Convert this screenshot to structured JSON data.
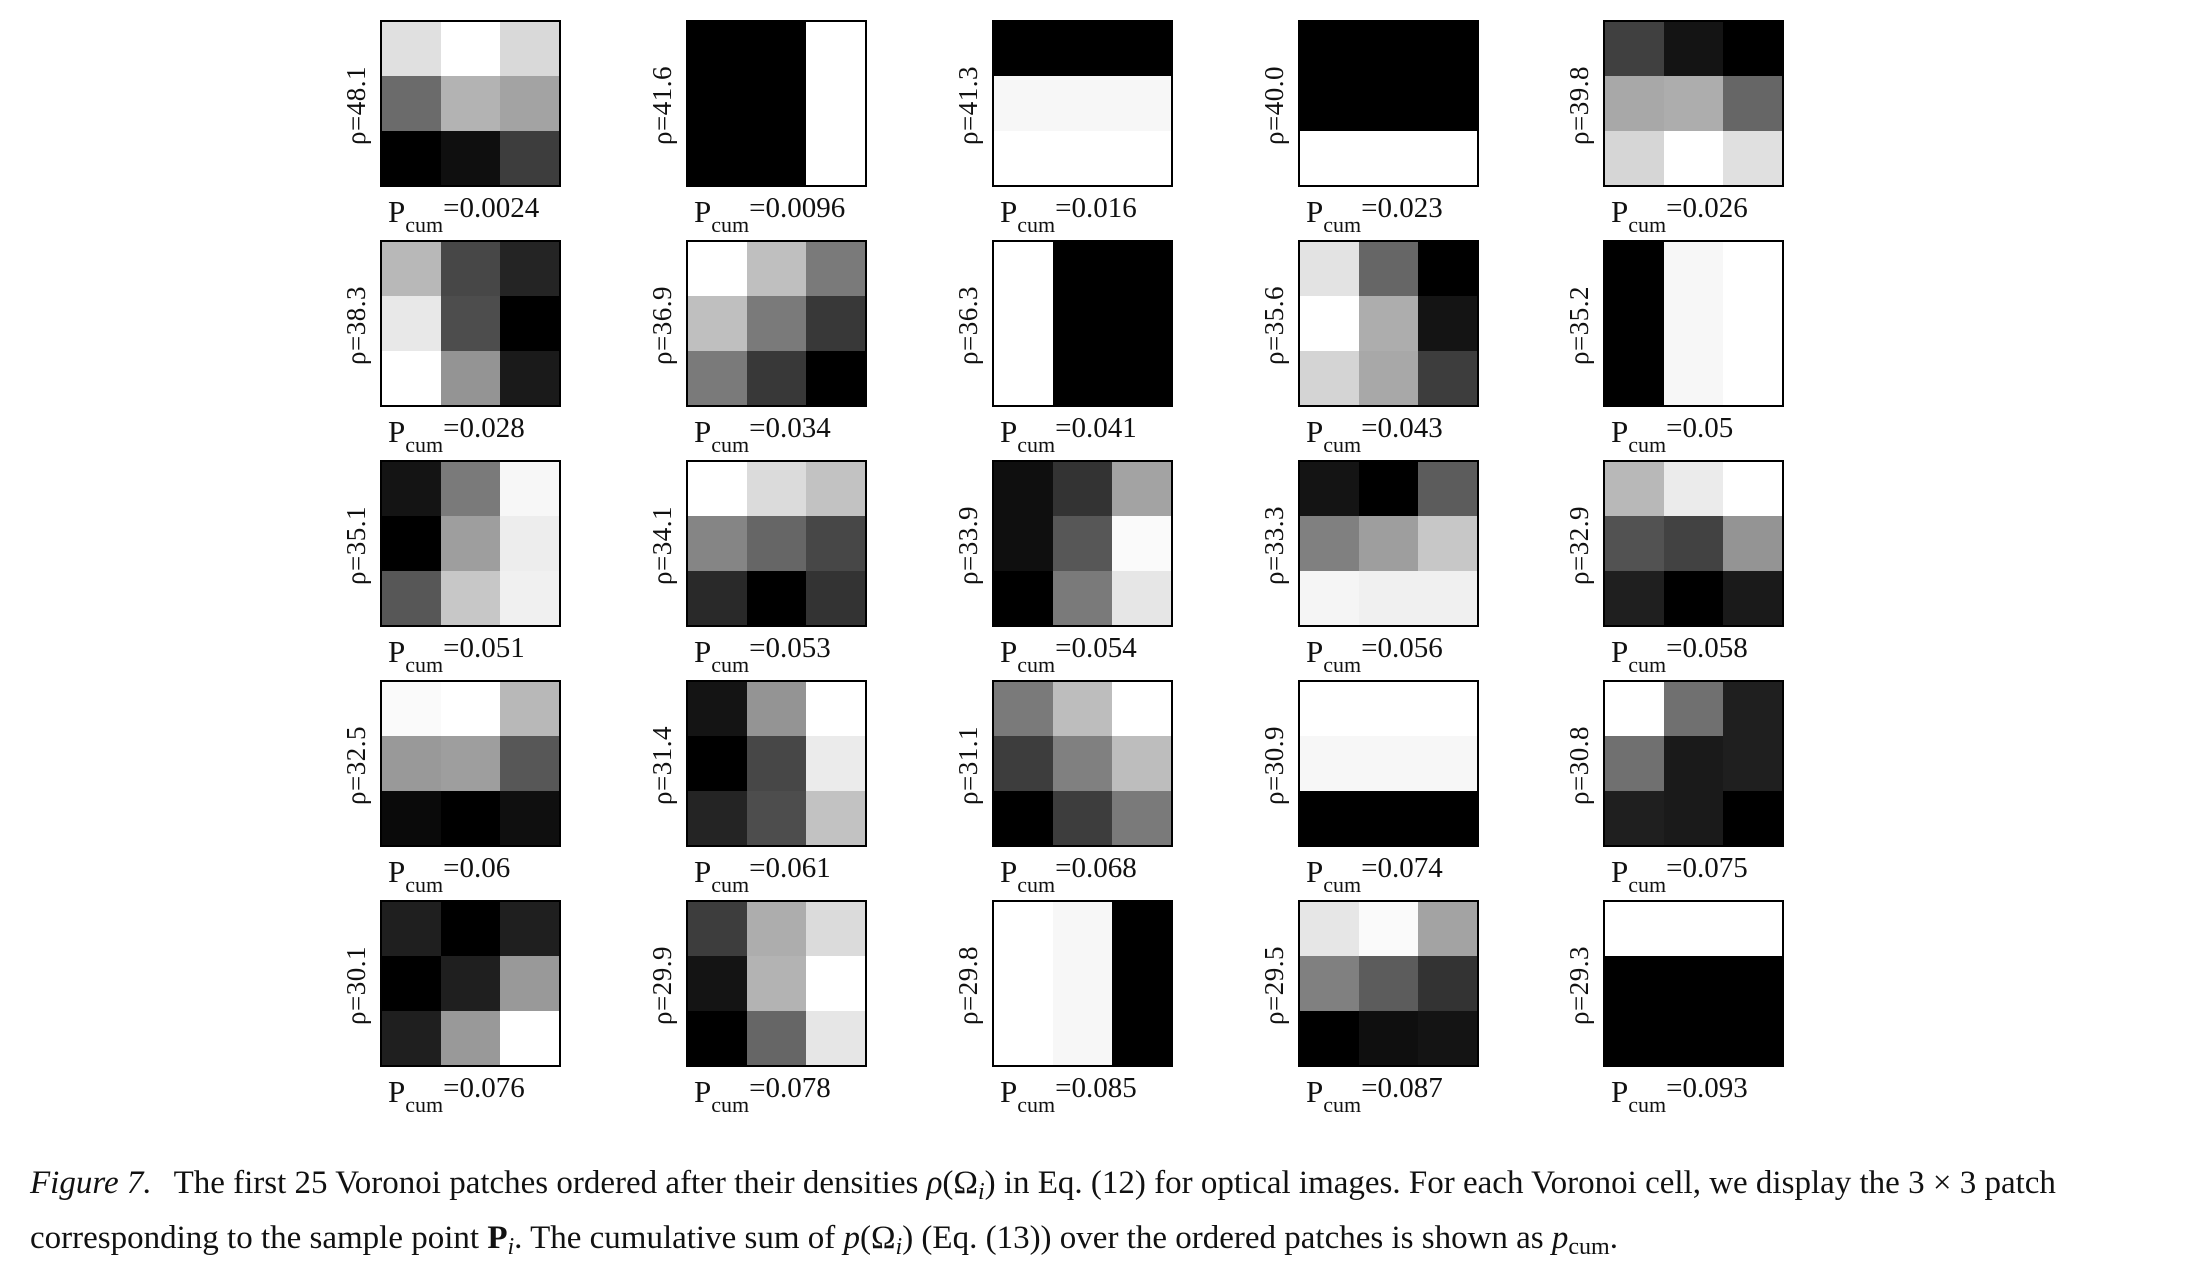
{
  "figure": {
    "patches": [
      {
        "rho": "ρ=48.1",
        "pcum_sym": "P",
        "pcum_sub": "cum",
        "pcum_val": "=0.0024",
        "grid": [
          [
            0.88,
            1.0,
            0.85
          ],
          [
            0.42,
            0.7,
            0.64
          ],
          [
            0.0,
            0.06,
            0.24
          ]
        ]
      },
      {
        "rho": "ρ=41.6",
        "pcum_sym": "P",
        "pcum_sub": "cum",
        "pcum_val": "=0.0096",
        "grid": [
          [
            0.0,
            0.0,
            1.0
          ],
          [
            0.0,
            0.0,
            1.0
          ],
          [
            0.0,
            0.0,
            1.0
          ]
        ]
      },
      {
        "rho": "ρ=41.3",
        "pcum_sym": "P",
        "pcum_sub": "cum",
        "pcum_val": "=0.016",
        "grid": [
          [
            0.0,
            0.0,
            0.0
          ],
          [
            0.97,
            0.97,
            0.97
          ],
          [
            1.0,
            1.0,
            1.0
          ]
        ]
      },
      {
        "rho": "ρ=40.0",
        "pcum_sym": "P",
        "pcum_sub": "cum",
        "pcum_val": "=0.023",
        "grid": [
          [
            0.0,
            0.0,
            0.0
          ],
          [
            0.0,
            0.0,
            0.0
          ],
          [
            1.0,
            1.0,
            1.0
          ]
        ]
      },
      {
        "rho": "ρ=39.8",
        "pcum_sym": "P",
        "pcum_sub": "cum",
        "pcum_val": "=0.026",
        "grid": [
          [
            0.25,
            0.08,
            0.0
          ],
          [
            0.66,
            0.68,
            0.4
          ],
          [
            0.84,
            1.0,
            0.88
          ]
        ]
      },
      {
        "rho": "ρ=38.3",
        "pcum_sym": "P",
        "pcum_sub": "cum",
        "pcum_val": "=0.028",
        "grid": [
          [
            0.72,
            0.28,
            0.14
          ],
          [
            0.91,
            0.3,
            0.0
          ],
          [
            1.0,
            0.58,
            0.1
          ]
        ]
      },
      {
        "rho": "ρ=36.9",
        "pcum_sym": "P",
        "pcum_sub": "cum",
        "pcum_val": "=0.034",
        "grid": [
          [
            1.0,
            0.75,
            0.48
          ],
          [
            0.75,
            0.48,
            0.22
          ],
          [
            0.48,
            0.22,
            0.0
          ]
        ]
      },
      {
        "rho": "ρ=36.3",
        "pcum_sym": "P",
        "pcum_sub": "cum",
        "pcum_val": "=0.041",
        "grid": [
          [
            1.0,
            0.0,
            0.0
          ],
          [
            1.0,
            0.0,
            0.0
          ],
          [
            1.0,
            0.0,
            0.0
          ]
        ]
      },
      {
        "rho": "ρ=35.6",
        "pcum_sym": "P",
        "pcum_sub": "cum",
        "pcum_val": "=0.043",
        "grid": [
          [
            0.89,
            0.4,
            0.0
          ],
          [
            1.0,
            0.68,
            0.08
          ],
          [
            0.83,
            0.66,
            0.24
          ]
        ]
      },
      {
        "rho": "ρ=35.2",
        "pcum_sym": "P",
        "pcum_sub": "cum",
        "pcum_val": "=0.05",
        "grid": [
          [
            0.0,
            0.97,
            1.0
          ],
          [
            0.0,
            0.97,
            1.0
          ],
          [
            0.0,
            0.97,
            1.0
          ]
        ]
      },
      {
        "rho": "ρ=35.1",
        "pcum_sym": "P",
        "pcum_sub": "cum",
        "pcum_val": "=0.051",
        "grid": [
          [
            0.08,
            0.48,
            0.97
          ],
          [
            0.0,
            0.62,
            0.93
          ],
          [
            0.34,
            0.78,
            0.94
          ]
        ]
      },
      {
        "rho": "ρ=34.1",
        "pcum_sym": "P",
        "pcum_sub": "cum",
        "pcum_val": "=0.053",
        "grid": [
          [
            1.0,
            0.86,
            0.76
          ],
          [
            0.52,
            0.4,
            0.28
          ],
          [
            0.16,
            0.0,
            0.2
          ]
        ]
      },
      {
        "rho": "ρ=33.9",
        "pcum_sym": "P",
        "pcum_sub": "cum",
        "pcum_val": "=0.054",
        "grid": [
          [
            0.06,
            0.2,
            0.64
          ],
          [
            0.06,
            0.34,
            0.98
          ],
          [
            0.0,
            0.48,
            0.9
          ]
        ]
      },
      {
        "rho": "ρ=33.3",
        "pcum_sym": "P",
        "pcum_sub": "cum",
        "pcum_val": "=0.056",
        "grid": [
          [
            0.08,
            0.0,
            0.36
          ],
          [
            0.5,
            0.62,
            0.78
          ],
          [
            0.96,
            0.94,
            0.94
          ]
        ]
      },
      {
        "rho": "ρ=32.9",
        "pcum_sym": "P",
        "pcum_sub": "cum",
        "pcum_val": "=0.058",
        "grid": [
          [
            0.72,
            0.92,
            1.0
          ],
          [
            0.32,
            0.26,
            0.58
          ],
          [
            0.12,
            0.0,
            0.1
          ]
        ]
      },
      {
        "rho": "ρ=32.5",
        "pcum_sym": "P",
        "pcum_sub": "cum",
        "pcum_val": "=0.06",
        "grid": [
          [
            0.98,
            1.0,
            0.72
          ],
          [
            0.6,
            0.62,
            0.34
          ],
          [
            0.04,
            0.0,
            0.06
          ]
        ]
      },
      {
        "rho": "ρ=31.4",
        "pcum_sym": "P",
        "pcum_sub": "cum",
        "pcum_val": "=0.061",
        "grid": [
          [
            0.08,
            0.58,
            1.0
          ],
          [
            0.0,
            0.28,
            0.92
          ],
          [
            0.14,
            0.3,
            0.76
          ]
        ]
      },
      {
        "rho": "ρ=31.1",
        "pcum_sym": "P",
        "pcum_sub": "cum",
        "pcum_val": "=0.068",
        "grid": [
          [
            0.48,
            0.74,
            1.0
          ],
          [
            0.24,
            0.5,
            0.74
          ],
          [
            0.0,
            0.24,
            0.48
          ]
        ]
      },
      {
        "rho": "ρ=30.9",
        "pcum_sym": "P",
        "pcum_sub": "cum",
        "pcum_val": "=0.074",
        "grid": [
          [
            1.0,
            1.0,
            1.0
          ],
          [
            0.97,
            0.97,
            0.97
          ],
          [
            0.0,
            0.0,
            0.0
          ]
        ]
      },
      {
        "rho": "ρ=30.8",
        "pcum_sym": "P",
        "pcum_sub": "cum",
        "pcum_val": "=0.075",
        "grid": [
          [
            1.0,
            0.44,
            0.12
          ],
          [
            0.44,
            0.1,
            0.12
          ],
          [
            0.12,
            0.1,
            0.0
          ]
        ]
      },
      {
        "rho": "ρ=30.1",
        "pcum_sym": "P",
        "pcum_sub": "cum",
        "pcum_val": "=0.076",
        "grid": [
          [
            0.12,
            0.0,
            0.12
          ],
          [
            0.0,
            0.12,
            0.6
          ],
          [
            0.12,
            0.6,
            1.0
          ]
        ]
      },
      {
        "rho": "ρ=29.9",
        "pcum_sym": "P",
        "pcum_sub": "cum",
        "pcum_val": "=0.078",
        "grid": [
          [
            0.24,
            0.68,
            0.86
          ],
          [
            0.08,
            0.7,
            1.0
          ],
          [
            0.0,
            0.4,
            0.9
          ]
        ]
      },
      {
        "rho": "ρ=29.8",
        "pcum_sym": "P",
        "pcum_sub": "cum",
        "pcum_val": "=0.085",
        "grid": [
          [
            1.0,
            0.97,
            0.0
          ],
          [
            1.0,
            0.97,
            0.0
          ],
          [
            1.0,
            0.97,
            0.0
          ]
        ]
      },
      {
        "rho": "ρ=29.5",
        "pcum_sym": "P",
        "pcum_sub": "cum",
        "pcum_val": "=0.087",
        "grid": [
          [
            0.9,
            0.98,
            0.64
          ],
          [
            0.5,
            0.36,
            0.2
          ],
          [
            0.0,
            0.06,
            0.08
          ]
        ]
      },
      {
        "rho": "ρ=29.3",
        "pcum_sym": "P",
        "pcum_sub": "cum",
        "pcum_val": "=0.093",
        "grid": [
          [
            1.0,
            1.0,
            1.0
          ],
          [
            0.0,
            0.0,
            0.0
          ],
          [
            0.0,
            0.0,
            0.0
          ]
        ]
      }
    ]
  },
  "caption": {
    "label": "Figure 7.",
    "t1": "The first 25 Voronoi patches ordered after their densities ",
    "rho_sym": "ρ",
    "t2": "(Ω",
    "i1": "i",
    "t3": ") in Eq. (12) for optical images. For each Voronoi cell, we display the 3 × 3 patch corresponding to the sample point ",
    "bold_p": "P",
    "i2": "i",
    "t4": ". The cumulative sum of ",
    "p_sym": "p",
    "t5": "(Ω",
    "i3": "i",
    "t6": ") (Eq. (13)) over the ordered patches is shown as ",
    "p_sym2": "p",
    "cum_sub": "cum",
    "t7": "."
  }
}
